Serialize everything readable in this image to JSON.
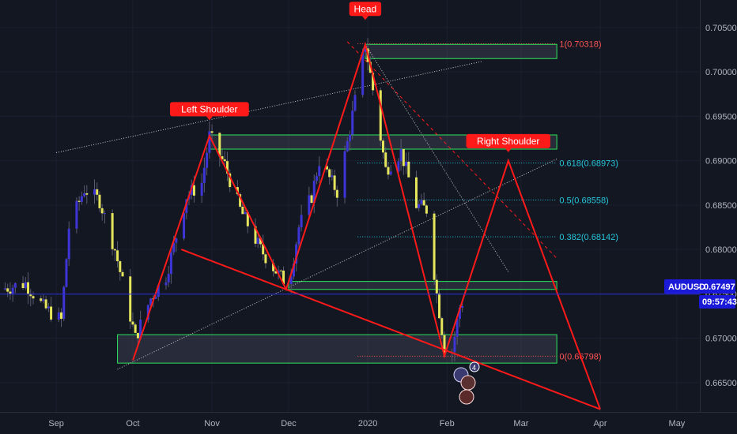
{
  "colors": {
    "background": "#131722",
    "bull": "#3d35d6",
    "bear": "#e6e65c",
    "pattern": "#ff1a1a",
    "zone": "#2ee65c",
    "fib_top": "#ff5555",
    "fib_mid": "#26c6da",
    "price_line": "#2a2ad8",
    "price_tag": "#1a1ad8",
    "dotted": "#c8c8c8"
  },
  "symbol": {
    "label": "AUDUSD",
    "price": "0.67497",
    "countdown": "09:57:43"
  },
  "callouts": {
    "head": "Head",
    "left_shoulder": "Left Shoulder",
    "right_shoulder": "Right Shoulder"
  },
  "fib_levels": [
    {
      "label": "1(0.70318)",
      "value": 0.70318,
      "start": "2019-12-28",
      "end": "2020-03-15",
      "color": "#ff5555"
    },
    {
      "label": "0.618(0.68973)",
      "value": 0.68973,
      "start": "2019-12-28",
      "end": "2020-03-15",
      "color": "#26c6da"
    },
    {
      "label": "0.5(0.68558)",
      "value": 0.68558,
      "start": "2019-12-28",
      "end": "2020-03-15",
      "color": "#26c6da"
    },
    {
      "label": "0.382(0.68142)",
      "value": 0.68142,
      "start": "2019-12-28",
      "end": "2020-03-15",
      "color": "#26c6da"
    },
    {
      "label": "0(0.66798)",
      "value": 0.66798,
      "start": "2019-12-28",
      "end": "2020-03-15",
      "color": "#ff5555"
    }
  ],
  "chart_data": {
    "type": "candlestick",
    "title": "",
    "xlabel": "",
    "ylabel": "",
    "x_ticks": [
      {
        "label": "Sep",
        "date": "2019-09-01"
      },
      {
        "label": "Oct",
        "date": "2019-10-01"
      },
      {
        "label": "Nov",
        "date": "2019-11-01"
      },
      {
        "label": "Dec",
        "date": "2019-12-01"
      },
      {
        "label": "2020",
        "date": "2020-01-01"
      },
      {
        "label": "Feb",
        "date": "2020-02-01"
      },
      {
        "label": "Mar",
        "date": "2020-03-01"
      },
      {
        "label": "Apr",
        "date": "2020-04-01"
      },
      {
        "label": "May",
        "date": "2020-05-01"
      }
    ],
    "y_ticks": [
      "0.70500",
      "0.70000",
      "0.69500",
      "0.69000",
      "0.68500",
      "0.68000",
      "0.67500",
      "0.67000",
      "0.66500"
    ],
    "x_range": [
      "2019-08-10",
      "2020-05-10"
    ],
    "ylim": [
      0.6617,
      0.7081
    ],
    "close_path": [
      [
        "2019-08-10",
        0.6755
      ],
      [
        "2019-08-20",
        0.6762
      ],
      [
        "2019-08-27",
        0.6735
      ],
      [
        "2019-09-03",
        0.672
      ],
      [
        "2019-09-06",
        0.6825
      ],
      [
        "2019-09-12",
        0.6868
      ],
      [
        "2019-09-18",
        0.6855
      ],
      [
        "2019-09-24",
        0.68
      ],
      [
        "2019-10-02",
        0.67
      ],
      [
        "2019-10-08",
        0.6745
      ],
      [
        "2019-10-14",
        0.677
      ],
      [
        "2019-10-22",
        0.686
      ],
      [
        "2019-10-28",
        0.6875
      ],
      [
        "2019-10-31",
        0.6928
      ],
      [
        "2019-11-06",
        0.6895
      ],
      [
        "2019-11-12",
        0.6845
      ],
      [
        "2019-11-20",
        0.68
      ],
      [
        "2019-11-27",
        0.6772
      ],
      [
        "2019-12-01",
        0.676
      ],
      [
        "2019-12-05",
        0.6825
      ],
      [
        "2019-12-10",
        0.686
      ],
      [
        "2019-12-13",
        0.69
      ],
      [
        "2019-12-20",
        0.6865
      ],
      [
        "2019-12-24",
        0.692
      ],
      [
        "2019-12-31",
        0.7031
      ],
      [
        "2020-01-03",
        0.698
      ],
      [
        "2020-01-08",
        0.689
      ],
      [
        "2020-01-14",
        0.691
      ],
      [
        "2020-01-20",
        0.685
      ],
      [
        "2020-01-24",
        0.6845
      ],
      [
        "2020-01-28",
        0.675
      ],
      [
        "2020-01-31",
        0.669
      ],
      [
        "2020-02-03",
        0.6686
      ],
      [
        "2020-02-06",
        0.6735
      ],
      [
        "2020-02-09",
        0.6752
      ]
    ],
    "pattern_lines": [
      [
        [
          "2019-10-01",
          0.6675
        ],
        [
          "2019-10-31",
          0.6928
        ],
        [
          "2019-11-30",
          0.6755
        ],
        [
          "2019-12-31",
          0.7031
        ],
        [
          "2020-01-31",
          0.668
        ],
        [
          "2020-02-25",
          0.69
        ],
        [
          "2020-04-01",
          0.662
        ]
      ],
      [
        [
          "2019-10-20",
          0.68
        ],
        [
          "2020-04-01",
          0.662
        ]
      ]
    ],
    "dotted_lines": [
      [
        [
          "2019-09-01",
          0.6909
        ],
        [
          "2020-02-15",
          0.7012
        ]
      ],
      [
        [
          "2019-09-25",
          0.6665
        ],
        [
          "2020-03-15",
          0.6902
        ]
      ],
      [
        [
          "2019-12-31",
          0.7031
        ],
        [
          "2020-02-25",
          0.6775
        ]
      ]
    ],
    "dashed_lines": [
      [
        [
          "2019-12-24",
          0.7034
        ],
        [
          "2020-03-15",
          0.679
        ]
      ]
    ],
    "zones": [
      {
        "start": "2019-12-31",
        "end": "2020-03-15",
        "low": 0.7015,
        "high": 0.7031
      },
      {
        "start": "2019-10-31",
        "end": "2020-03-15",
        "low": 0.6913,
        "high": 0.6929
      },
      {
        "start": "2019-12-01",
        "end": "2020-03-15",
        "low": 0.6755,
        "high": 0.6764
      },
      {
        "start": "2019-09-25",
        "end": "2020-03-15",
        "low": 0.6672,
        "high": 0.6704
      }
    ],
    "callout_anchors": {
      "head": [
        "2019-12-31",
        0.7063
      ],
      "left_shoulder": [
        "2019-10-31",
        0.695
      ],
      "right_shoulder": [
        "2020-02-25",
        0.6914
      ]
    },
    "current_price": 0.67497
  }
}
